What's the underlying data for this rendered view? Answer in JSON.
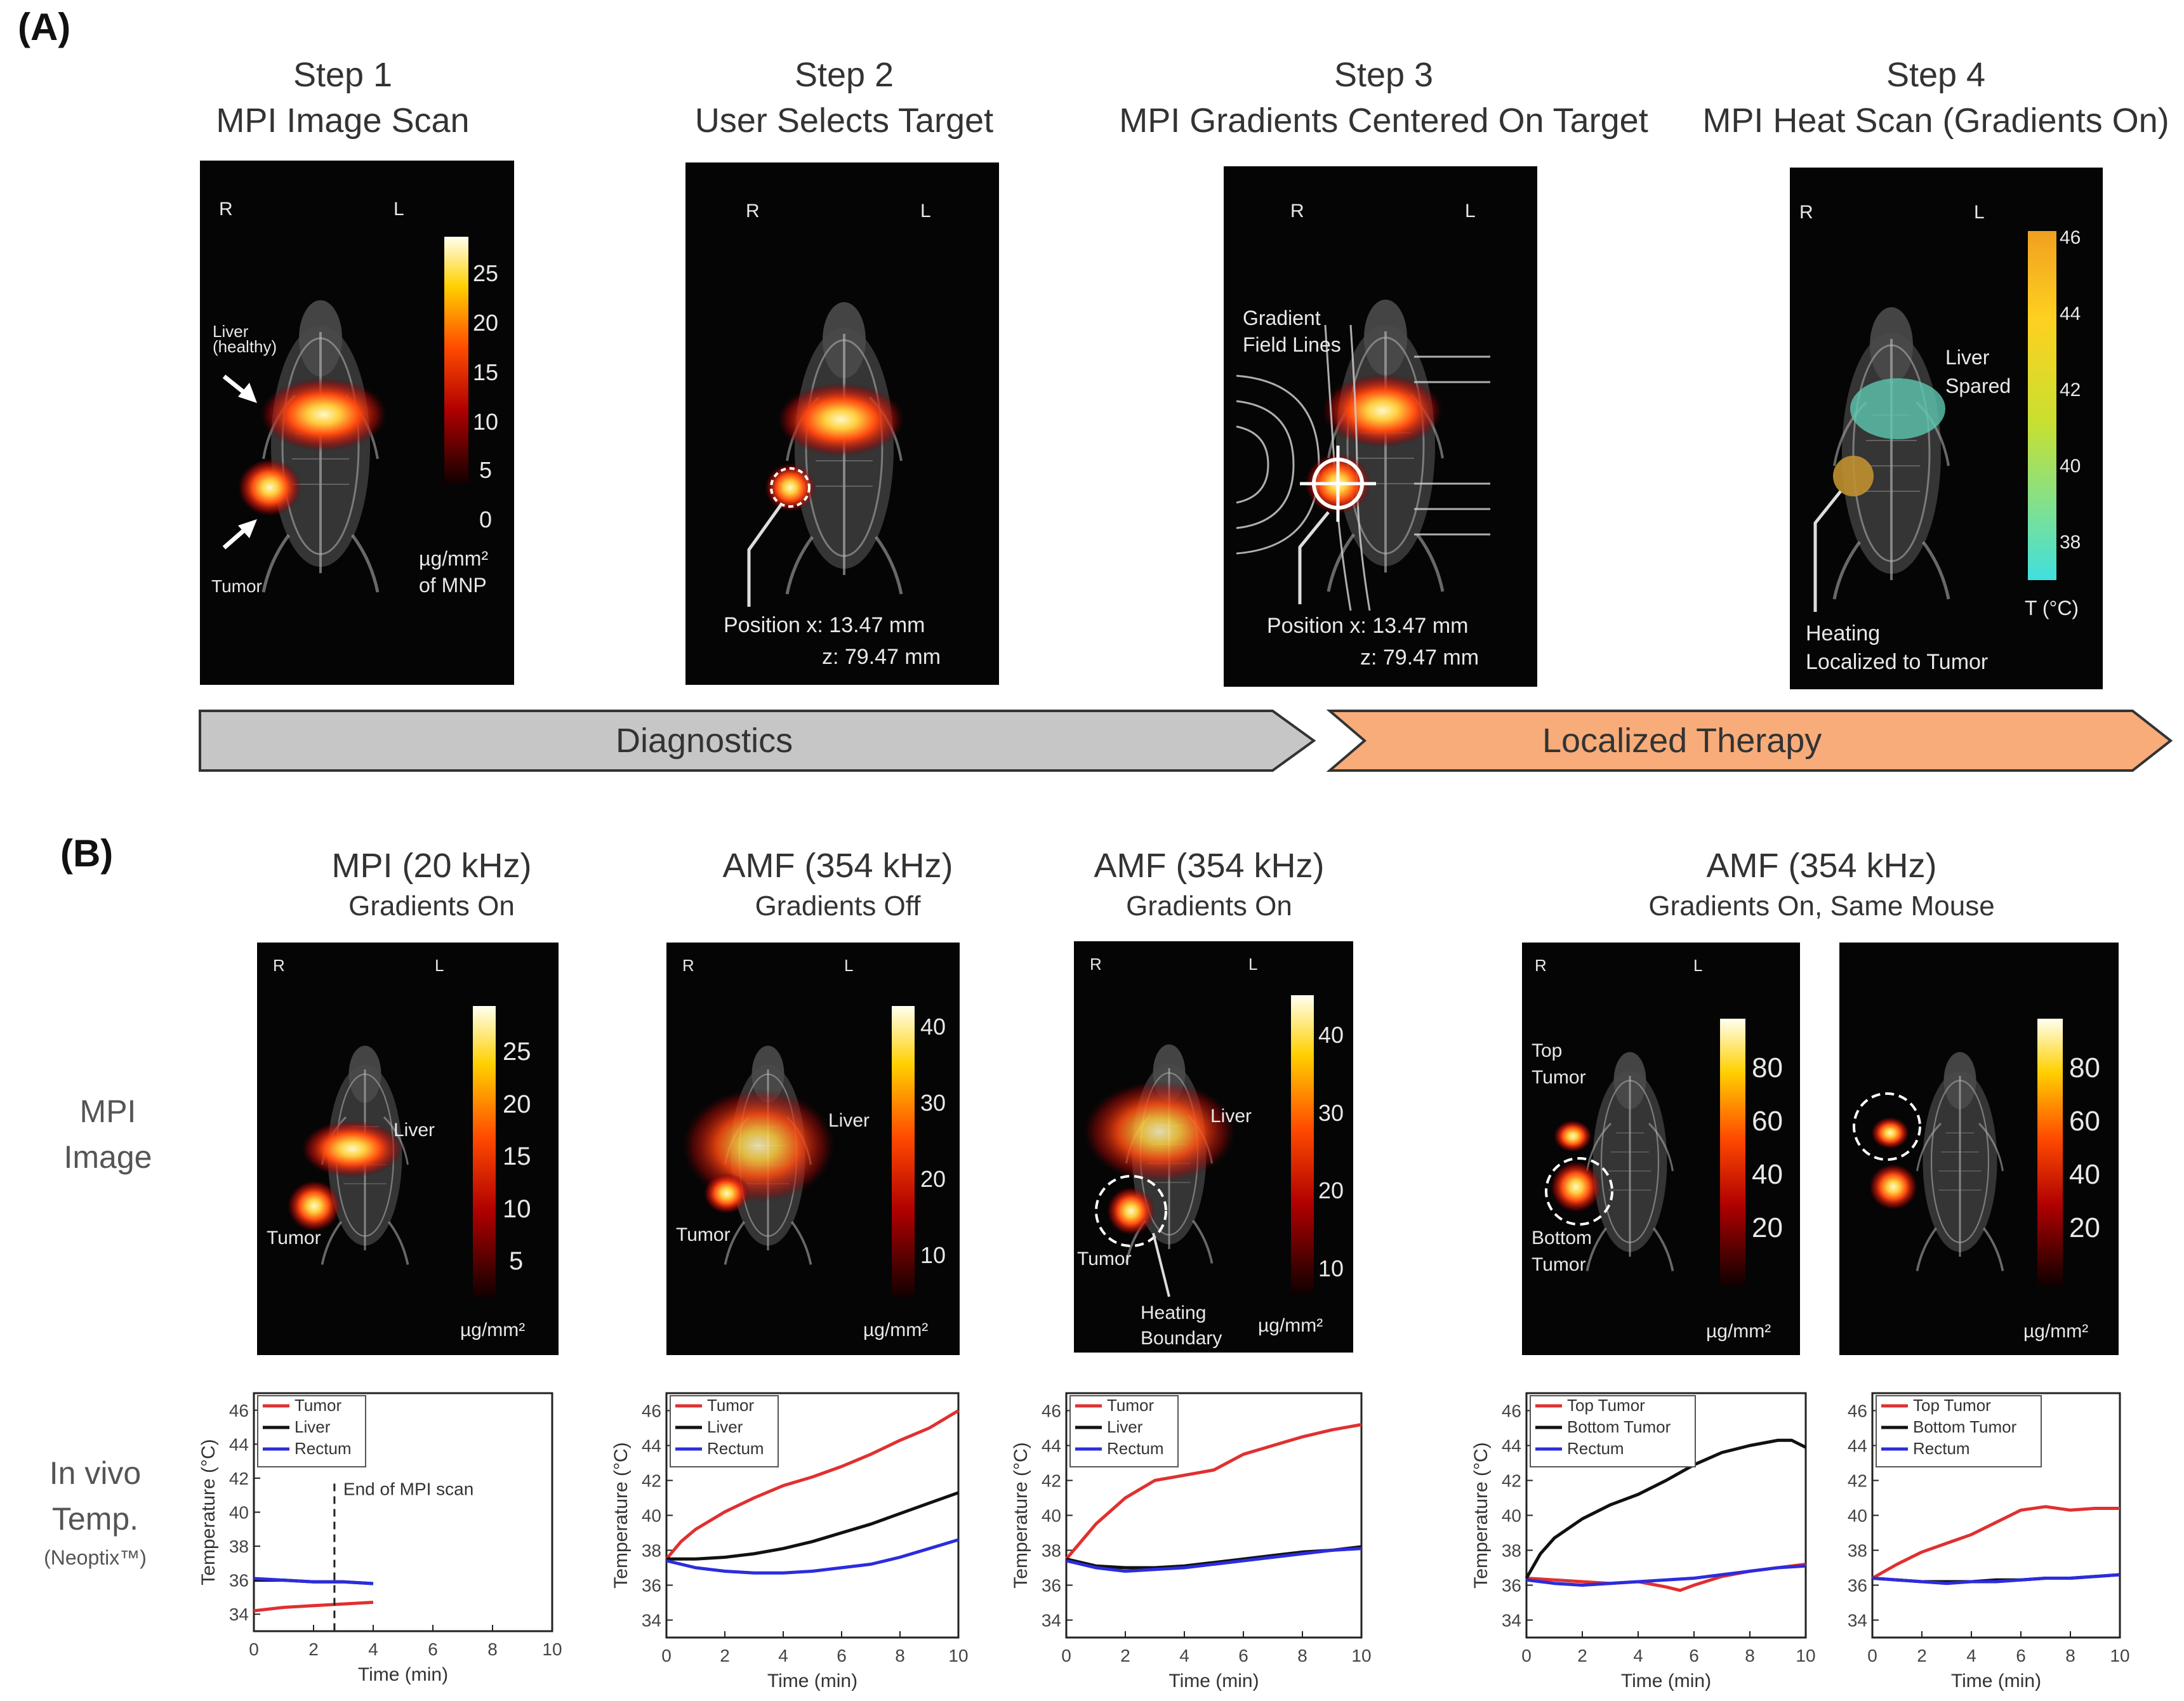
{
  "part_a": {
    "label": "(A)",
    "steps": [
      {
        "step": "Step 1",
        "title": "MPI Image Scan"
      },
      {
        "step": "Step 2",
        "title": "User Selects Target"
      },
      {
        "step": "Step 3",
        "title": "MPI Gradients Centered On Target"
      },
      {
        "step": "Step 4",
        "title": "MPI Heat Scan (Gradients On)"
      }
    ],
    "orient_r": "R",
    "orient_l": "L",
    "panel1": {
      "liver_label_1": "Liver",
      "liver_label_2": "(healthy)",
      "tumor_label": "Tumor",
      "colorbar_ticks": [
        "25",
        "20",
        "15",
        "10",
        "5",
        "0"
      ],
      "colorbar_unit_1": "µg/mm²",
      "colorbar_unit_2": "of MNP"
    },
    "panel2": {
      "position_x": "Position x: 13.47 mm",
      "position_z": "z: 79.47 mm"
    },
    "panel3": {
      "gradient_label_1": "Gradient",
      "gradient_label_2": "Field Lines",
      "position_x": "Position x: 13.47 mm",
      "position_z": "z: 79.47 mm"
    },
    "panel4": {
      "liver_label_1": "Liver",
      "liver_label_2": "Spared",
      "heating_label_1": "Heating",
      "heating_label_2": "Localized to Tumor",
      "colorbar_ticks": [
        "46",
        "44",
        "42",
        "40",
        "38"
      ],
      "colorbar_unit": "T (°C)"
    },
    "arrows": {
      "diagnostics": "Diagnostics",
      "therapy": "Localized Therapy"
    },
    "colors": {
      "diagnostics": "#c6c6c6",
      "therapy": "#f7ac7a"
    }
  },
  "part_b": {
    "label": "(B)",
    "columns": [
      {
        "title": "MPI (20 kHz)",
        "subtitle": "Gradients On"
      },
      {
        "title": "AMF (354 kHz)",
        "subtitle": "Gradients Off"
      },
      {
        "title": "AMF (354 kHz)",
        "subtitle": "Gradients On"
      },
      {
        "title": "AMF (354 kHz)",
        "subtitle": "Gradients On, Same Mouse"
      }
    ],
    "row_labels": {
      "mpi_1": "MPI",
      "mpi_2": "Image",
      "temp_1": "In vivo",
      "temp_2": "Temp.",
      "temp_3": "(Neoptix™)"
    },
    "images": [
      {
        "liver": "Liver",
        "tumor": "Tumor",
        "ticks": [
          "25",
          "20",
          "15",
          "10",
          "5"
        ],
        "unit": "µg/mm²"
      },
      {
        "liver": "Liver",
        "tumor": "Tumor",
        "ticks": [
          "40",
          "30",
          "20",
          "10"
        ],
        "unit": "µg/mm²"
      },
      {
        "liver": "Liver",
        "tumor": "Tumor",
        "heating_1": "Heating",
        "heating_2": "Boundary",
        "ticks": [
          "40",
          "30",
          "20",
          "10"
        ],
        "unit": "µg/mm²"
      },
      {
        "top_1": "Top",
        "top_2": "Tumor",
        "bottom_1": "Bottom",
        "bottom_2": "Tumor",
        "ticks": [
          "80",
          "60",
          "40",
          "20"
        ],
        "unit": "µg/mm²"
      },
      {
        "ticks": [
          "80",
          "60",
          "40",
          "20"
        ],
        "unit": "µg/mm²"
      }
    ]
  },
  "chart_data": [
    {
      "type": "line",
      "xlabel": "Time (min)",
      "ylabel": "Temperature (°C)",
      "xlim": [
        0,
        10
      ],
      "ylim": [
        33,
        47
      ],
      "xticks": [
        0,
        2,
        4,
        6,
        8,
        10
      ],
      "yticks": [
        34,
        36,
        38,
        40,
        42,
        44,
        46
      ],
      "legend": "top-left",
      "annotation": {
        "text": "End of MPI scan",
        "x": 2.7
      },
      "series": [
        {
          "name": "Tumor",
          "color": "#e03030",
          "x": [
            0,
            1,
            2,
            3,
            4
          ],
          "y": [
            34.2,
            34.4,
            34.5,
            34.6,
            34.7
          ]
        },
        {
          "name": "Liver",
          "color": "#111111",
          "x": [
            0,
            1,
            2,
            3,
            4
          ],
          "y": [
            36.0,
            36.0,
            35.9,
            35.9,
            35.8
          ]
        },
        {
          "name": "Rectum",
          "color": "#2c2cdd",
          "x": [
            0,
            1,
            2,
            3,
            4
          ],
          "y": [
            36.1,
            36.0,
            35.9,
            35.9,
            35.8
          ]
        }
      ]
    },
    {
      "type": "line",
      "xlabel": "Time (min)",
      "ylabel": "Temperature (°C)",
      "xlim": [
        0,
        10
      ],
      "ylim": [
        33,
        47
      ],
      "xticks": [
        0,
        2,
        4,
        6,
        8,
        10
      ],
      "yticks": [
        34,
        36,
        38,
        40,
        42,
        44,
        46
      ],
      "legend": "top-left",
      "series": [
        {
          "name": "Tumor",
          "color": "#e03030",
          "x": [
            0,
            0.5,
            1,
            2,
            3,
            4,
            5,
            6,
            7,
            8,
            9,
            10
          ],
          "y": [
            37.5,
            38.5,
            39.2,
            40.2,
            41.0,
            41.7,
            42.2,
            42.8,
            43.5,
            44.3,
            45.0,
            46.0
          ]
        },
        {
          "name": "Liver",
          "color": "#111111",
          "x": [
            0,
            1,
            2,
            3,
            4,
            5,
            6,
            7,
            8,
            9,
            10
          ],
          "y": [
            37.5,
            37.5,
            37.6,
            37.8,
            38.1,
            38.5,
            39.0,
            39.5,
            40.1,
            40.7,
            41.3
          ]
        },
        {
          "name": "Rectum",
          "color": "#2c2cdd",
          "x": [
            0,
            1,
            2,
            3,
            4,
            5,
            6,
            7,
            8,
            9,
            10
          ],
          "y": [
            37.4,
            37.0,
            36.8,
            36.7,
            36.7,
            36.8,
            37.0,
            37.2,
            37.6,
            38.1,
            38.6
          ]
        }
      ]
    },
    {
      "type": "line",
      "xlabel": "Time (min)",
      "ylabel": "Temperature (°C)",
      "xlim": [
        0,
        10
      ],
      "ylim": [
        33,
        47
      ],
      "xticks": [
        0,
        2,
        4,
        6,
        8,
        10
      ],
      "yticks": [
        34,
        36,
        38,
        40,
        42,
        44,
        46
      ],
      "legend": "top-left",
      "series": [
        {
          "name": "Tumor",
          "color": "#e03030",
          "x": [
            0,
            0.5,
            1,
            2,
            3,
            4,
            5,
            6,
            7,
            8,
            9,
            10
          ],
          "y": [
            37.5,
            38.5,
            39.5,
            41.0,
            42.0,
            42.3,
            42.6,
            43.5,
            44.0,
            44.5,
            44.9,
            45.2
          ]
        },
        {
          "name": "Liver",
          "color": "#111111",
          "x": [
            0,
            1,
            2,
            3,
            4,
            5,
            6,
            7,
            8,
            9,
            10
          ],
          "y": [
            37.5,
            37.1,
            37.0,
            37.0,
            37.1,
            37.3,
            37.5,
            37.7,
            37.9,
            38.0,
            38.2
          ]
        },
        {
          "name": "Rectum",
          "color": "#2c2cdd",
          "x": [
            0,
            1,
            2,
            3,
            4,
            5,
            6,
            7,
            8,
            9,
            10
          ],
          "y": [
            37.4,
            37.0,
            36.8,
            36.9,
            37.0,
            37.2,
            37.4,
            37.6,
            37.8,
            38.0,
            38.1
          ]
        }
      ]
    },
    {
      "type": "line",
      "xlabel": "Time (min)",
      "ylabel": "Temperature (°C)",
      "xlim": [
        0,
        10
      ],
      "ylim": [
        33,
        47
      ],
      "xticks": [
        0,
        2,
        4,
        6,
        8,
        10
      ],
      "yticks": [
        34,
        36,
        38,
        40,
        42,
        44,
        46
      ],
      "legend": "top-left",
      "series": [
        {
          "name": "Top Tumor",
          "color": "#e03030",
          "x": [
            0,
            1,
            2,
            3,
            4,
            5,
            5.5,
            6,
            7,
            8,
            9,
            10
          ],
          "y": [
            36.4,
            36.3,
            36.2,
            36.1,
            36.2,
            35.9,
            35.7,
            36.0,
            36.5,
            36.8,
            37.0,
            37.2
          ]
        },
        {
          "name": "Bottom Tumor",
          "color": "#111111",
          "x": [
            0,
            0.5,
            1,
            2,
            3,
            4,
            5,
            6,
            7,
            8,
            9,
            9.5,
            10
          ],
          "y": [
            36.4,
            37.8,
            38.7,
            39.8,
            40.6,
            41.2,
            42.0,
            42.9,
            43.6,
            44.0,
            44.3,
            44.3,
            43.9
          ]
        },
        {
          "name": "Rectum",
          "color": "#2c2cdd",
          "x": [
            0,
            1,
            2,
            3,
            4,
            5,
            6,
            7,
            8,
            9,
            10
          ],
          "y": [
            36.3,
            36.1,
            36.0,
            36.1,
            36.2,
            36.3,
            36.4,
            36.6,
            36.8,
            37.0,
            37.1
          ]
        }
      ]
    },
    {
      "type": "line",
      "xlabel": "Time (min)",
      "ylabel": "",
      "xlim": [
        0,
        10
      ],
      "ylim": [
        33,
        47
      ],
      "xticks": [
        0,
        2,
        4,
        6,
        8,
        10
      ],
      "yticks": [
        34,
        36,
        38,
        40,
        42,
        44,
        46
      ],
      "legend": "top-left",
      "series": [
        {
          "name": "Top Tumor",
          "color": "#e03030",
          "x": [
            0,
            1,
            2,
            3,
            4,
            5,
            6,
            7,
            8,
            9,
            10
          ],
          "y": [
            36.4,
            37.2,
            37.9,
            38.4,
            38.9,
            39.6,
            40.3,
            40.5,
            40.3,
            40.4,
            40.4
          ]
        },
        {
          "name": "Bottom Tumor",
          "color": "#111111",
          "x": [
            0,
            1,
            2,
            3,
            4,
            5,
            6,
            7,
            8,
            9,
            10
          ],
          "y": [
            36.4,
            36.3,
            36.2,
            36.2,
            36.2,
            36.3,
            36.3,
            36.4,
            36.4,
            36.5,
            36.6
          ]
        },
        {
          "name": "Rectum",
          "color": "#2c2cdd",
          "x": [
            0,
            1,
            2,
            3,
            4,
            5,
            6,
            7,
            8,
            9,
            10
          ],
          "y": [
            36.4,
            36.3,
            36.2,
            36.1,
            36.2,
            36.2,
            36.3,
            36.4,
            36.4,
            36.5,
            36.6
          ]
        }
      ]
    }
  ]
}
